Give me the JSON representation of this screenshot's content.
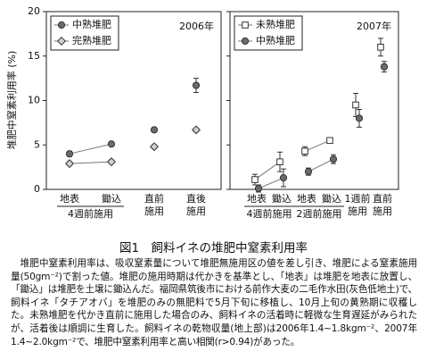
{
  "chart_data": [
    {
      "type": "line",
      "title": "2006年",
      "y_label": "堆肥中窒素利用率 (%)",
      "categories": [
        "地表",
        "鋤込",
        "直前\n施用",
        "直後\n施用"
      ],
      "groups": [
        "4週前施用",
        "4週前施用",
        null,
        null
      ],
      "ylim": [
        0,
        20
      ],
      "yticks": [
        0,
        5,
        10,
        15,
        20
      ],
      "legend": "upper left",
      "series": [
        {
          "name": "中熟堆肥",
          "color": "#6b6b6b",
          "marker": "circle",
          "values": [
            4.0,
            5.1,
            6.7,
            11.7
          ],
          "errors": [
            0.3,
            0.2,
            0.2,
            0.8
          ]
        },
        {
          "name": "完熟堆肥",
          "color": "#d0d0d0",
          "marker": "diamond",
          "values": [
            2.9,
            3.1,
            4.8,
            6.7
          ],
          "errors": [
            0.2,
            0.2,
            0.2,
            0.2
          ]
        }
      ]
    },
    {
      "type": "line",
      "title": "2007年",
      "categories": [
        "地表",
        "鋤込",
        "地表",
        "鋤込",
        "1週前\n施用",
        "直前\n施用"
      ],
      "groups": [
        "4週前施用",
        "4週前施用",
        "2週前施用",
        "2週前施用",
        null,
        null
      ],
      "ylim": [
        0,
        20
      ],
      "yticks": [
        0,
        5,
        10,
        15,
        20
      ],
      "legend": "upper left",
      "series": [
        {
          "name": "未熟堆肥",
          "color": "#ffffff",
          "marker": "square",
          "values": [
            1.1,
            3.1,
            4.3,
            5.5,
            9.5,
            16.0
          ],
          "errors": [
            0.6,
            1.1,
            0.5,
            0.2,
            1.3,
            1.0
          ]
        },
        {
          "name": "中熟堆肥",
          "color": "#6b6b6b",
          "marker": "circle",
          "values": [
            0.1,
            1.3,
            2.0,
            3.4,
            8.0,
            13.8
          ],
          "errors": [
            0.4,
            1.0,
            0.4,
            0.5,
            1.0,
            0.6
          ]
        }
      ]
    }
  ],
  "caption": "図1　飼料イネの堆肥中窒素利用率",
  "note": "堆肥中窒素利用率は、吸収窒素量について堆肥無施用区の値を差し引き、堆肥による窒素施用量(50gm⁻²)で割った値。堆肥の施用時期は代かきを基準とし、「地表」は堆肥を地表に放置し、「鋤込」は堆肥を土壌に鋤込んだ。福岡県筑後市における前作大麦の二毛作水田(灰色低地土)で、飼料イネ「タチアオバ」を堆肥のみの無肥料で5月下旬に移植し、10月上旬の黄熟期に収穫した。未熟堆肥を代かき直前に施用した場合のみ、飼料イネの活着時に軽微な生育遅延がみられたが、活着後は順調に生育した。飼料イネの乾物収量(地上部)は2006年1.4~1.8kgm⁻²、2007年1.4~2.0kgm⁻²で、堆肥中窒素利用率と高い相関(r>0.94)があった。"
}
